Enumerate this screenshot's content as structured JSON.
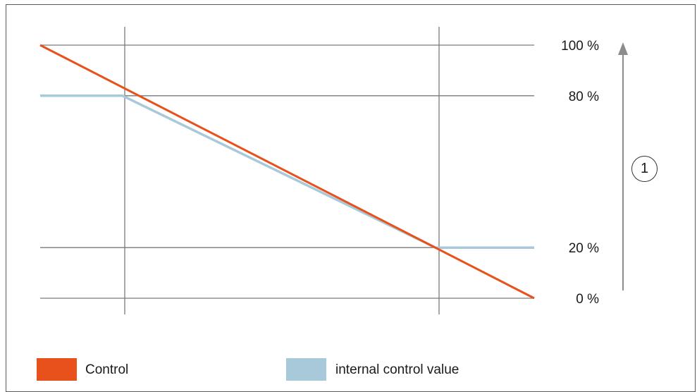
{
  "chart_data": {
    "type": "line",
    "x": [
      0,
      1,
      2,
      3,
      4,
      5,
      6
    ],
    "ylim": [
      0,
      100
    ],
    "yticks": [
      {
        "value": 100,
        "label": "100 %"
      },
      {
        "value": 80,
        "label": "80 %"
      },
      {
        "value": 20,
        "label": "20 %"
      },
      {
        "value": 0,
        "label": "0 %"
      }
    ],
    "series": [
      {
        "name": "Control",
        "color": "#e8501c",
        "points": [
          [
            0,
            100
          ],
          [
            6,
            0
          ]
        ]
      },
      {
        "name": "internal control value",
        "color": "#a7c9d9",
        "points": [
          [
            0,
            80
          ],
          [
            1,
            80
          ],
          [
            4.8,
            20
          ],
          [
            6,
            20
          ]
        ]
      }
    ],
    "annotation": {
      "label": "1",
      "meaning": "increasing"
    },
    "grid": true,
    "legend": "bottom"
  },
  "colors": {
    "grid": "#7a7a7a",
    "arrow": "#8c8c8c"
  }
}
